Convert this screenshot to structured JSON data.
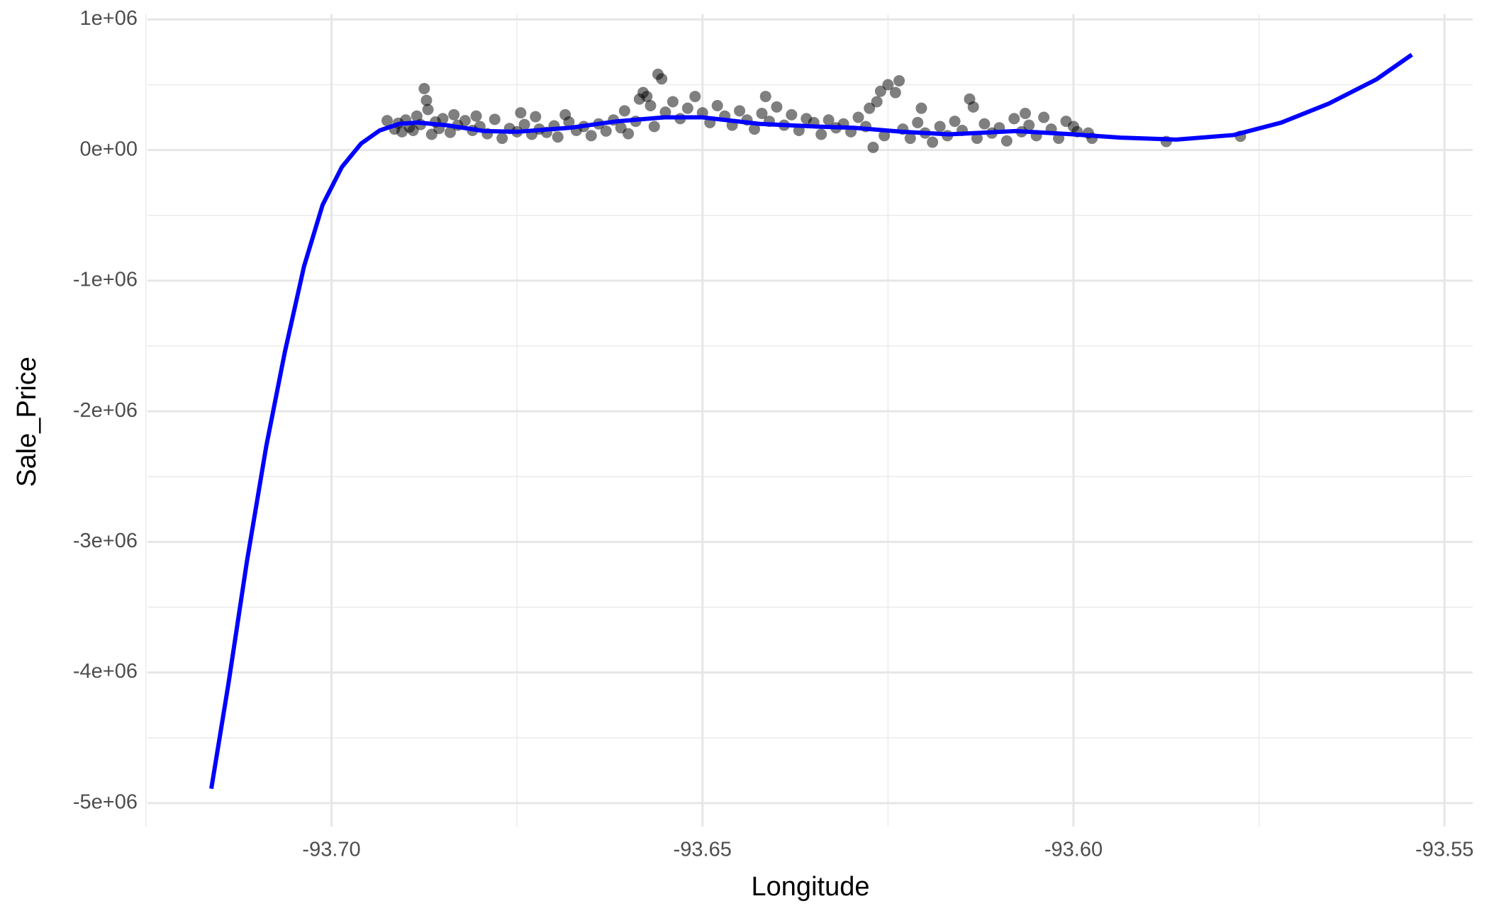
{
  "chart_data": {
    "type": "scatter",
    "x_label": "Longitude",
    "y_label": "Sale_Price",
    "xlim": [
      -93.7248,
      -93.5462
    ],
    "ylim": [
      -5180000,
      1040000
    ],
    "xticks": [
      {
        "value": -93.7,
        "label": "-93.70"
      },
      -93.65,
      {
        "value": -93.6,
        "label": "-93.60"
      },
      -93.55
    ],
    "yticks": [
      {
        "value": 1000000,
        "label": "1e+06"
      },
      {
        "value": 0,
        "label": "0e+00"
      },
      {
        "value": -1000000,
        "label": "-1e+06"
      },
      {
        "value": -2000000,
        "label": "-2e+06"
      },
      {
        "value": -3000000,
        "label": "-3e+06"
      },
      {
        "value": -4000000,
        "label": "-4e+06"
      },
      {
        "value": -5000000,
        "label": "-5e+06"
      }
    ],
    "xminor": [
      -93.725,
      -93.675,
      -93.625,
      -93.575
    ],
    "yminor": [
      500000,
      -500000,
      -1500000,
      -2500000,
      -3500000,
      -4500000
    ],
    "grid": true,
    "points": {
      "color": "#000000",
      "opacity": 0.5,
      "x": [
        -93.6925,
        -93.6915,
        -93.691,
        -93.6905,
        -93.69,
        -93.6895,
        -93.689,
        -93.6885,
        -93.688,
        -93.6875,
        -93.6872,
        -93.687,
        -93.6865,
        -93.686,
        -93.6855,
        -93.685,
        -93.684,
        -93.6835,
        -93.683,
        -93.682,
        -93.681,
        -93.6805,
        -93.68,
        -93.679,
        -93.678,
        -93.677,
        -93.676,
        -93.675,
        -93.6745,
        -93.674,
        -93.673,
        -93.6725,
        -93.672,
        -93.671,
        -93.67,
        -93.6695,
        -93.6685,
        -93.668,
        -93.667,
        -93.666,
        -93.665,
        -93.664,
        -93.663,
        -93.662,
        -93.661,
        -93.6605,
        -93.66,
        -93.659,
        -93.6585,
        -93.658,
        -93.6575,
        -93.657,
        -93.6565,
        -93.656,
        -93.6555,
        -93.655,
        -93.654,
        -93.653,
        -93.652,
        -93.651,
        -93.65,
        -93.649,
        -93.648,
        -93.647,
        -93.646,
        -93.645,
        -93.644,
        -93.643,
        -93.642,
        -93.6415,
        -93.641,
        -93.64,
        -93.639,
        -93.638,
        -93.637,
        -93.636,
        -93.635,
        -93.634,
        -93.633,
        -93.632,
        -93.631,
        -93.63,
        -93.629,
        -93.628,
        -93.6275,
        -93.627,
        -93.6265,
        -93.626,
        -93.6255,
        -93.625,
        -93.624,
        -93.6235,
        -93.623,
        -93.622,
        -93.621,
        -93.6205,
        -93.62,
        -93.619,
        -93.618,
        -93.617,
        -93.616,
        -93.615,
        -93.614,
        -93.6135,
        -93.613,
        -93.612,
        -93.611,
        -93.61,
        -93.609,
        -93.608,
        -93.607,
        -93.6065,
        -93.606,
        -93.605,
        -93.604,
        -93.603,
        -93.602,
        -93.601,
        -93.6,
        -93.5995,
        -93.598,
        -93.5975,
        -93.5875,
        -93.5775
      ],
      "y": [
        225000,
        160000,
        205000,
        140000,
        230000,
        175000,
        150000,
        260000,
        195000,
        470000,
        380000,
        310000,
        120000,
        215000,
        165000,
        240000,
        135000,
        270000,
        190000,
        225000,
        150000,
        260000,
        180000,
        125000,
        235000,
        90000,
        165000,
        140000,
        285000,
        195000,
        120000,
        255000,
        160000,
        135000,
        185000,
        100000,
        270000,
        215000,
        150000,
        180000,
        110000,
        200000,
        145000,
        230000,
        170000,
        300000,
        125000,
        220000,
        390000,
        440000,
        410000,
        340000,
        180000,
        580000,
        545000,
        290000,
        370000,
        240000,
        320000,
        410000,
        285000,
        210000,
        340000,
        260000,
        190000,
        300000,
        230000,
        160000,
        280000,
        410000,
        220000,
        330000,
        190000,
        270000,
        150000,
        240000,
        210000,
        120000,
        230000,
        170000,
        200000,
        140000,
        250000,
        180000,
        320000,
        20000,
        370000,
        450000,
        110000,
        500000,
        440000,
        530000,
        160000,
        90000,
        210000,
        320000,
        130000,
        60000,
        180000,
        110000,
        220000,
        150000,
        390000,
        330000,
        90000,
        200000,
        130000,
        170000,
        70000,
        240000,
        140000,
        280000,
        190000,
        110000,
        250000,
        160000,
        90000,
        220000,
        180000,
        140000,
        130000,
        90000,
        65000,
        105000
      ]
    },
    "line": {
      "color": "#0000ff",
      "x": [
        -93.7162,
        -93.7139,
        -93.7114,
        -93.7088,
        -93.7063,
        -93.7037,
        -93.7012,
        -93.6986,
        -93.696,
        -93.6935,
        -93.6909,
        -93.6884,
        -93.6845,
        -93.6794,
        -93.6749,
        -93.6679,
        -93.6615,
        -93.6551,
        -93.65,
        -93.6423,
        -93.6347,
        -93.6296,
        -93.6231,
        -93.6168,
        -93.6078,
        -93.6,
        -93.5937,
        -93.5861,
        -93.5784,
        -93.572,
        -93.5656,
        -93.5592,
        -93.5544
      ],
      "y": [
        -4890000,
        -4090000,
        -3150000,
        -2270000,
        -1550000,
        -890000,
        -420000,
        -130000,
        50000,
        150000,
        200000,
        210000,
        190000,
        145000,
        140000,
        170000,
        220000,
        250000,
        250000,
        200000,
        180000,
        170000,
        140000,
        120000,
        145000,
        120000,
        95000,
        80000,
        115000,
        210000,
        355000,
        540000,
        730000
      ]
    }
  }
}
